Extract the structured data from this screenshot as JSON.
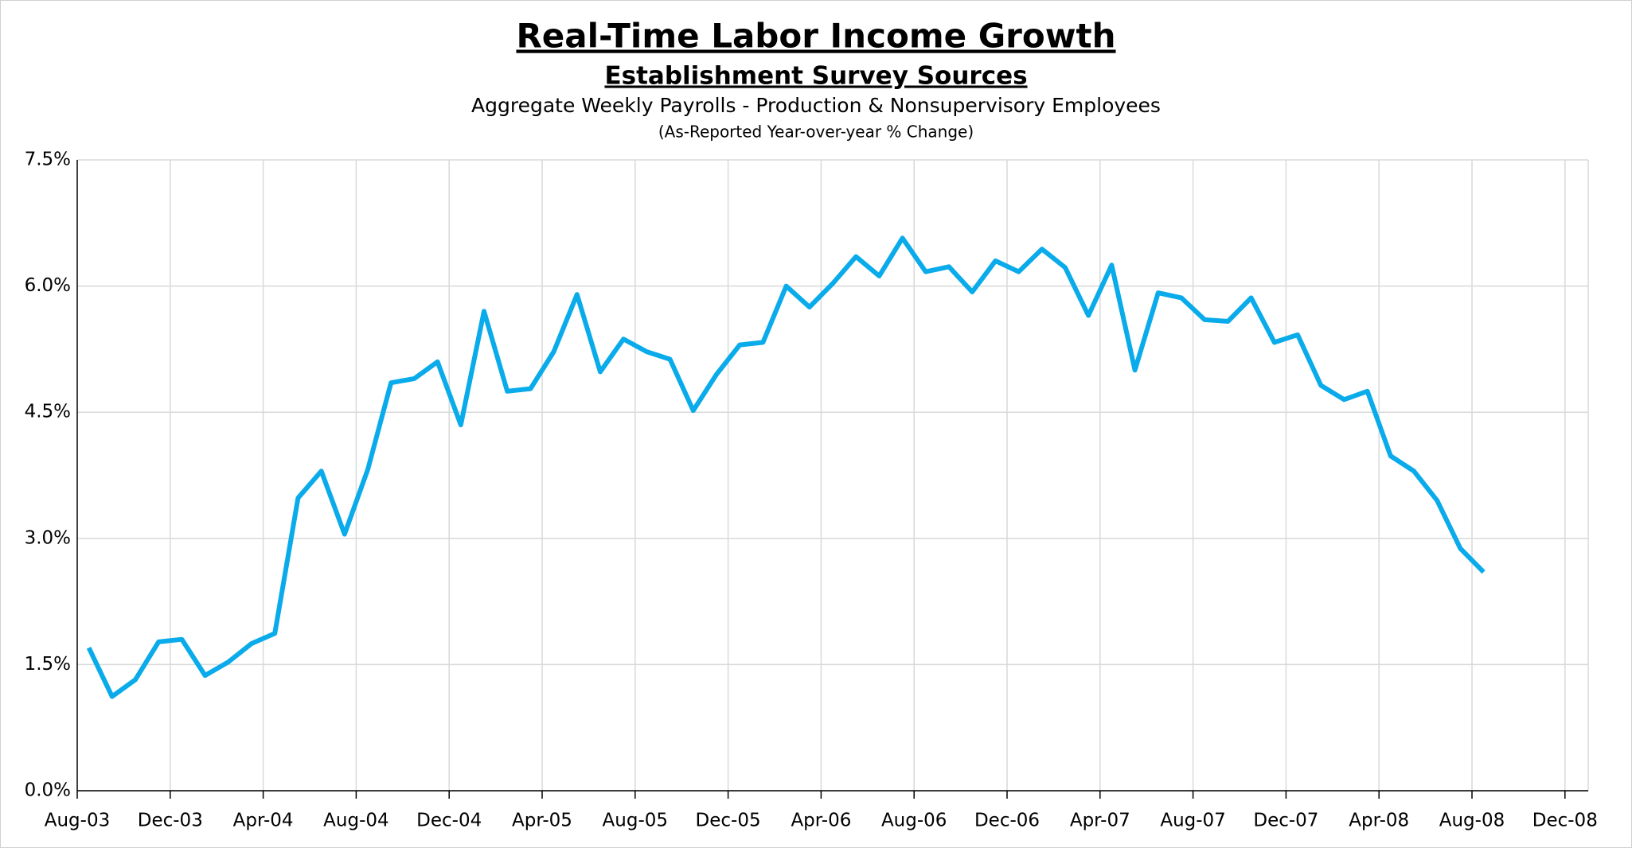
{
  "chart_data": {
    "type": "line",
    "title": "Real-Time Labor Income Growth",
    "subtitle": "Establishment Survey Sources",
    "description": "Aggregate Weekly Payrolls - Production & Nonsupervisory Employees",
    "note": "(As-Reported Year-over-year % Change)",
    "categories": [
      "Aug-03",
      null,
      null,
      null,
      "Dec-03",
      null,
      null,
      null,
      "Apr-04",
      null,
      null,
      null,
      "Aug-04",
      null,
      null,
      null,
      "Dec-04",
      null,
      null,
      null,
      "Apr-05",
      null,
      null,
      null,
      "Aug-05",
      null,
      null,
      null,
      "Dec-05",
      null,
      null,
      null,
      "Apr-06",
      null,
      null,
      null,
      "Aug-06",
      null,
      null,
      null,
      "Dec-06",
      null,
      null,
      null,
      "Apr-07",
      null,
      null,
      null,
      "Aug-07",
      null,
      null,
      null,
      "Dec-07",
      null,
      null,
      null,
      "Apr-08",
      null,
      null,
      null,
      "Aug-08",
      null,
      null,
      null,
      "Dec-08"
    ],
    "series": [
      {
        "color": "#0aabea",
        "values": [
          1.7,
          1.12,
          1.32,
          1.77,
          1.8,
          1.37,
          1.53,
          1.75,
          1.87,
          3.48,
          3.8,
          3.05,
          3.82,
          4.85,
          4.9,
          5.1,
          4.35,
          5.7,
          4.75,
          4.78,
          5.22,
          5.9,
          4.98,
          5.37,
          5.22,
          5.13,
          4.52,
          4.95,
          5.3,
          5.33,
          6.0,
          5.75,
          6.03,
          6.35,
          6.12,
          6.57,
          6.17,
          6.23,
          5.93,
          6.3,
          6.17,
          6.44,
          6.22,
          5.65,
          6.25,
          5.0,
          5.92,
          5.86,
          5.6,
          5.58,
          5.86,
          5.33,
          5.42,
          4.82,
          4.65,
          4.75,
          3.98,
          3.8,
          3.45,
          2.88,
          2.6,
          null,
          null,
          null,
          null
        ]
      }
    ],
    "ylim": [
      0,
      7.5
    ],
    "yticks": [
      {
        "value": 0,
        "label": "0.0%"
      },
      {
        "value": 1.5,
        "label": "1.5%"
      },
      {
        "value": 3,
        "label": "3.0%"
      },
      {
        "value": 4.5,
        "label": "4.5%"
      },
      {
        "value": 6,
        "label": "6.0%"
      },
      {
        "value": 7.5,
        "label": "7.5%"
      }
    ],
    "grid": true
  }
}
